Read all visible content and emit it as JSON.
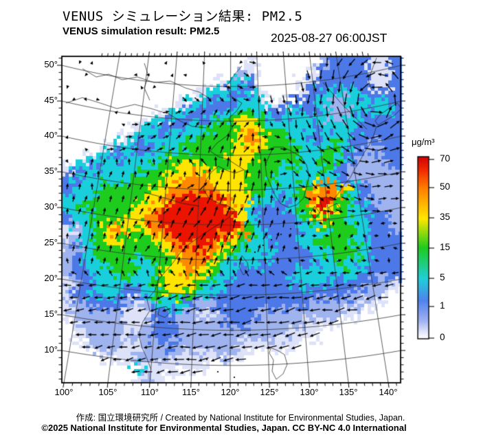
{
  "header": {
    "title_jp": "VENUS シミュレーション結果: PM2.5",
    "title_en": "VENUS simulation result: PM2.5",
    "datetime": "2025-08-27 06:00JST"
  },
  "footer": {
    "credit": "作成: 国立環境研究所 / Created by National Institute for Environmental Studies, Japan.",
    "license": "©2025 National Institute for Environmental Studies, Japan. CC BY-NC 4.0 International"
  },
  "chart_data": {
    "type": "heatmap",
    "title": "VENUS simulation result: PM2.5",
    "variable": "PM2.5 surface concentration with wind vectors",
    "unit": "μg/m³",
    "projection": "Lambert-conformal style map of East Asia",
    "lon_range_deg": [
      100,
      143
    ],
    "lat_range_deg": [
      6,
      51
    ],
    "lat_tick_labels": [
      "50°",
      "45°",
      "40°",
      "35°",
      "30°",
      "25°",
      "20°",
      "15°",
      "10°"
    ],
    "lon_tick_labels": [
      "100°",
      "105°",
      "110°",
      "115°",
      "120°",
      "125°",
      "130°",
      "135°",
      "140°"
    ],
    "colorbar": {
      "unit": "μg/m³",
      "tick_labels": [
        "70",
        "50",
        "35",
        "15",
        "5",
        "1",
        "0"
      ],
      "tick_values": [
        70,
        50,
        35,
        15,
        5,
        1,
        0
      ],
      "gradient": [
        {
          "p": 0.0,
          "color": "#d40000"
        },
        {
          "p": 0.08,
          "color": "#f13000"
        },
        {
          "p": 0.17,
          "color": "#ff7c00"
        },
        {
          "p": 0.34,
          "color": "#ffe800"
        },
        {
          "p": 0.5,
          "color": "#1ecb1e"
        },
        {
          "p": 0.67,
          "color": "#20cfd8"
        },
        {
          "p": 0.79,
          "color": "#4f83ec"
        },
        {
          "p": 0.9,
          "color": "#9fb0f2"
        },
        {
          "p": 0.97,
          "color": "#e8ecfb"
        },
        {
          "p": 1.0,
          "color": "#ffffff"
        }
      ]
    },
    "palette": [
      "#ffffff",
      "#dde2f8",
      "#9fb3ef",
      "#4d79e8",
      "#19cfdc",
      "#1dcc1d",
      "#ffe400",
      "#ff8a00",
      "#ea1400"
    ],
    "palette_levels_ugm3": [
      "no data",
      "0–1",
      "~1",
      "1–5",
      "5–15",
      "15–35",
      "35–50",
      "50–70",
      "70+"
    ],
    "grid_note": "coarse 33x31 sampling of the PM2.5 field over the map area; each char is a palette index",
    "grid": [
      "000000000000000000100000023333113",
      "000000000000000002100000133333113",
      "000000000000000144300001333333113",
      "000000000000014433410001344443333",
      "000000000001443334441133342244443",
      "000000000144333445543344342243443",
      "000000014433444556654444444443333",
      "000000144344455556765544334433333",
      "000014433444555556765554445433233",
      "001443444455555566655554455432233",
      "144344444556665566555454454322223",
      "334444455566776666555444444322222",
      "344455555667777666554445677643222",
      "444555556678888766544345787543222",
      "445555566788888876433345686544322",
      "344555667888888886433334565544332",
      "124567656788888887543334445554332",
      "124566555678888765443334455544333",
      "234555555567787654444333445554333",
      "234455544556776544443333344544333",
      "233445544566765443333334444443333",
      "123444444566654433333344443333221",
      "233444334565544333333333333322210",
      "123333212444322333333333222221100",
      "122222111333211233322222222110000",
      "012222112332222233222222111000000",
      "012222122332222222222211100000000",
      "001222112232222221111110000000000",
      "000011122221111211000000000000000",
      "000000041111110000000000000000000",
      "000000012100000000000000000000000"
    ]
  }
}
